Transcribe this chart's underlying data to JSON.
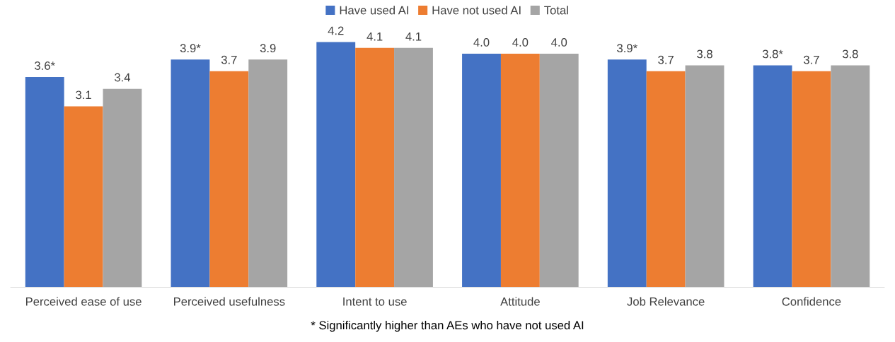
{
  "chart_data": {
    "type": "bar",
    "categories": [
      "Perceived ease of use",
      "Perceived usefulness",
      "Intent to use",
      "Attitude",
      "Job Relevance",
      "Confidence"
    ],
    "series": [
      {
        "name": "Have used AI",
        "color": "#4472c4",
        "values": [
          3.6,
          3.9,
          4.2,
          4.0,
          3.9,
          3.8
        ],
        "value_labels": [
          "3.6*",
          "3.9*",
          "4.2",
          "4.0",
          "3.9*",
          "3.8*"
        ]
      },
      {
        "name": "Have not used AI",
        "color": "#ed7d31",
        "values": [
          3.1,
          3.7,
          4.1,
          4.0,
          3.7,
          3.7
        ],
        "value_labels": [
          "3.1",
          "3.7",
          "4.1",
          "4.0",
          "3.7",
          "3.7"
        ]
      },
      {
        "name": "Total",
        "color": "#a5a5a5",
        "values": [
          3.4,
          3.9,
          4.1,
          4.0,
          3.8,
          3.8
        ],
        "value_labels": [
          "3.4",
          "3.9",
          "4.1",
          "4.0",
          "3.8",
          "3.8"
        ]
      }
    ],
    "annotations": [
      "* Significantly higher than AEs who have not used AI"
    ],
    "legend": "top",
    "grid": false,
    "tick_labels": "x"
  }
}
